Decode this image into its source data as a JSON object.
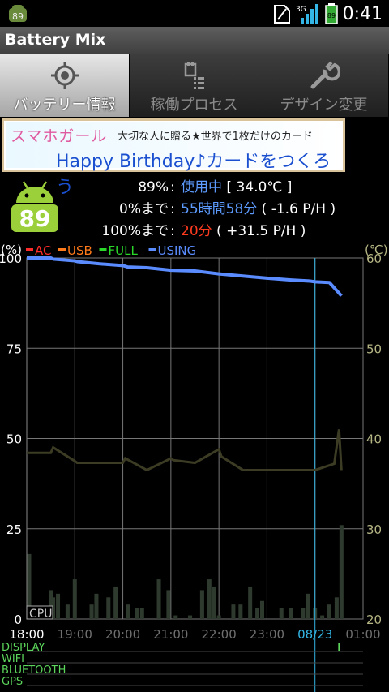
{
  "statusbar": {
    "time": "0:41",
    "battery_badge": "89",
    "network": "3G",
    "app_badge": "89"
  },
  "app": {
    "title": "Battery Mix"
  },
  "tabs": [
    {
      "label": "バッテリー情報",
      "icon": "target-icon",
      "active": true
    },
    {
      "label": "稼働プロセス",
      "icon": "process-list-icon",
      "active": false
    },
    {
      "label": "デザイン変更",
      "icon": "wrench-icon",
      "active": false
    }
  ],
  "banner": {
    "brand": "スマホガール",
    "tagline": "大切な人に贈る★世界で1枚だけのカード",
    "headline": "Happy Birthday♪カードをつくろう"
  },
  "battery": {
    "level": "89",
    "rows": [
      {
        "pre": "89%",
        "sep": ":",
        "value": "使用中",
        "extra": " [ 34.0℃ ]"
      },
      {
        "pre": "0%まで",
        "sep": ":",
        "value": "55時間58分",
        "extra": " ( -1.6 P/H )"
      },
      {
        "pre": "100%まで",
        "sep": ":",
        "value": "20分",
        "extra": " ( +31.5 P/H )"
      }
    ]
  },
  "chart_data": {
    "type": "line",
    "legend": [
      {
        "name": "AC",
        "color": "#ff2a2a"
      },
      {
        "name": "USB",
        "color": "#ff7a1a"
      },
      {
        "name": "FULL",
        "color": "#2ad82a"
      },
      {
        "name": "USING",
        "color": "#5a8cff"
      }
    ],
    "left_unit": "(%)",
    "right_unit": "(℃)",
    "left_ticks": [
      "100",
      "75",
      "50",
      "25",
      "0"
    ],
    "right_ticks": [
      "60",
      "50",
      "40",
      "30",
      "20"
    ],
    "x_ticks": [
      "18:00",
      "19:00",
      "20:00",
      "21:00",
      "22:00",
      "23:00",
      "08/23",
      "01:00"
    ],
    "cpu_label": "CPU",
    "bottom_rows": [
      "DISPLAY",
      "WIFI",
      "BLUETOOTH",
      "GPS"
    ],
    "x_range": [
      0,
      7
    ],
    "current_time": 6.0,
    "battery_series": {
      "name": "USING",
      "x": [
        0,
        0.5,
        0.55,
        1.0,
        1.05,
        1.5,
        2.0,
        2.1,
        2.5,
        3.0,
        3.5,
        4.0,
        4.5,
        5.0,
        5.5,
        5.9,
        6.0,
        6.3,
        6.45,
        6.55
      ],
      "y": [
        100,
        100,
        99.7,
        99.2,
        99,
        98.4,
        97.9,
        97.5,
        97.3,
        96.6,
        96.4,
        95.6,
        95.0,
        94.4,
        93.9,
        93.6,
        93.4,
        93.2,
        91.0,
        89.5
      ]
    },
    "temp_series": {
      "name": "temperature",
      "x": [
        0,
        0.5,
        0.55,
        1.0,
        1.05,
        1.5,
        2.0,
        2.05,
        2.5,
        3.0,
        3.05,
        3.5,
        4.0,
        4.05,
        4.5,
        5.0,
        5.5,
        5.9,
        6.0,
        6.4,
        6.5,
        6.55
      ],
      "y": [
        38.4,
        38.4,
        39.0,
        37.5,
        37.3,
        37.3,
        37.3,
        37.8,
        36.5,
        37.8,
        37.6,
        37.3,
        38.8,
        38.0,
        36.5,
        36.5,
        36.5,
        36.5,
        36.5,
        37.2,
        41.0,
        36.5
      ]
    },
    "cpu_bars": {
      "x": [
        0.05,
        0.15,
        0.5,
        0.55,
        0.65,
        0.85,
        1.0,
        1.35,
        1.45,
        1.7,
        1.85,
        2.1,
        2.3,
        2.4,
        2.75,
        2.95,
        3.1,
        3.4,
        3.65,
        3.8,
        3.9,
        4.0,
        4.3,
        4.45,
        4.65,
        4.8,
        4.9,
        5.3,
        5.5,
        5.75,
        5.85,
        6.0,
        6.15,
        6.3,
        6.45,
        6.55
      ],
      "v": [
        18,
        3,
        8,
        6,
        7,
        4,
        11,
        4,
        7,
        6,
        9,
        4,
        3,
        3,
        11,
        8,
        1,
        1,
        8,
        11,
        9,
        1,
        4,
        4,
        9,
        3,
        5,
        3,
        3,
        3,
        7,
        3,
        1,
        4,
        6,
        26
      ]
    }
  }
}
